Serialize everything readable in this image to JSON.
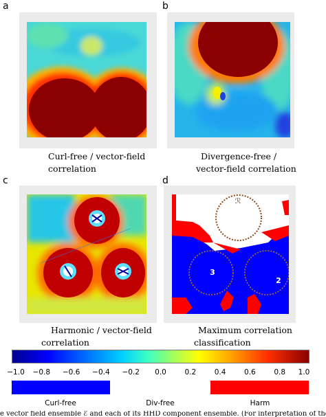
{
  "panels": [
    {
      "letter": "a",
      "caption": [
        "Curl-free / vector-field",
        "correlation"
      ]
    },
    {
      "letter": "b",
      "caption": [
        "Divergence-free /",
        "vector-field correlation"
      ]
    },
    {
      "letter": "c",
      "caption": [
        "Harmonic / vector-field",
        "correlation"
      ]
    },
    {
      "letter": "d",
      "caption": [
        "Maximum correlation",
        "classification"
      ]
    }
  ],
  "classification_labels": {
    "top": "ℛ",
    "left": "3",
    "right": "2"
  },
  "colorbar": {
    "ticks": [
      "−1.0",
      "−0.8",
      "−0.6",
      "−0.4",
      "−0.2",
      "0.0",
      "0.2",
      "0.4",
      "0.6",
      "0.8",
      "1.0"
    ],
    "range": [
      -1.0,
      1.0
    ],
    "colormap": "jet"
  },
  "classes": [
    {
      "label": "Curl-free",
      "color": "#0000ff"
    },
    {
      "label": "Div-free",
      "color": "#ffffff"
    },
    {
      "label": "Harm",
      "color": "#ff0000"
    }
  ],
  "colors": {
    "frame": "#ebebeb",
    "curl": "#0000ff",
    "harm": "#ff0000",
    "ring": "#8b4513"
  },
  "footer_text": "e vector field ensemble ℰ and each of its HHD component ensemble. (For interpretation of the references to co"
}
